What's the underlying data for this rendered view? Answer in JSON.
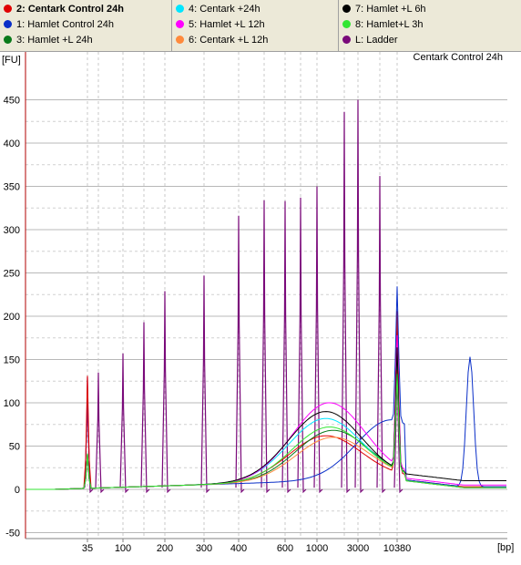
{
  "legend": {
    "columns": [
      [
        {
          "label": "2: Centark Control 24h",
          "color": "#e00000",
          "bold": true
        },
        {
          "label": "1: Hamlet Control 24h",
          "color": "#0a2fc8",
          "bold": false
        },
        {
          "label": "3: Hamlet +L 24h",
          "color": "#0a7a1a",
          "bold": false
        }
      ],
      [
        {
          "label": "4: Centark +24h",
          "color": "#00e6ff",
          "bold": false
        },
        {
          "label": "5: Hamlet +L 12h",
          "color": "#ff00ff",
          "bold": false
        },
        {
          "label": "6: Centark +L 12h",
          "color": "#ff8a3c",
          "bold": false
        }
      ],
      [
        {
          "label": "7: Hamlet +L 6h",
          "color": "#000000",
          "bold": false
        },
        {
          "label": "8: Hamlet+L 3h",
          "color": "#33e633",
          "bold": false
        },
        {
          "label": "L: Ladder",
          "color": "#7a0a7a",
          "bold": false
        }
      ]
    ]
  },
  "chart": {
    "sample_title": "Centark Control 24h",
    "y_unit": "[FU]",
    "x_unit": "[bp]",
    "y_ticks": [
      "-50",
      "0",
      "50",
      "100",
      "150",
      "200",
      "250",
      "300",
      "350",
      "400",
      "450"
    ],
    "x_ticks": [
      "35",
      "100",
      "200",
      "300",
      "400",
      "600",
      "1000",
      "3000",
      "10380"
    ]
  },
  "chart_data": {
    "type": "line",
    "title": "Centark Control 24h",
    "xlabel": "[bp]",
    "ylabel": "[FU]",
    "ylim": [
      -50,
      480
    ],
    "grid": true,
    "legend_position": "top",
    "x_tick_labels": [
      "35",
      "100",
      "200",
      "300",
      "400",
      "600",
      "1000",
      "3000",
      "10380"
    ],
    "ladder_peaks": [
      {
        "bp": "35",
        "fu": 130
      },
      {
        "bp": "50",
        "fu": 135
      },
      {
        "bp": "100",
        "fu": 157
      },
      {
        "bp": "150",
        "fu": 193
      },
      {
        "bp": "200",
        "fu": 229
      },
      {
        "bp": "300",
        "fu": 247
      },
      {
        "bp": "400",
        "fu": 316
      },
      {
        "bp": "500",
        "fu": 334
      },
      {
        "bp": "600",
        "fu": 333
      },
      {
        "bp": "700",
        "fu": 337
      },
      {
        "bp": "1000",
        "fu": 350
      },
      {
        "bp": "2000",
        "fu": 436
      },
      {
        "bp": "3000",
        "fu": 450
      },
      {
        "bp": "7000",
        "fu": 362
      },
      {
        "bp": "10380",
        "fu": 181
      }
    ],
    "series": [
      {
        "name": "2: Centark Control 24h",
        "color": "#e00000",
        "peak_fu": 52,
        "upper_marker_fu": 186,
        "baseline_end_fu": 3
      },
      {
        "name": "1: Hamlet Control 24h",
        "color": "#0a2fc8",
        "peak_fu": 68,
        "upper_marker_fu": 155,
        "baseline_end_fu": 3
      },
      {
        "name": "3: Hamlet +L 24h",
        "color": "#0a7a1a",
        "peak_fu": 58,
        "upper_marker_fu": 130,
        "baseline_end_fu": 2
      },
      {
        "name": "4: Centark +24h",
        "color": "#00e6ff",
        "peak_fu": 72,
        "upper_marker_fu": 120,
        "baseline_end_fu": 2
      },
      {
        "name": "5: Hamlet +L 12h",
        "color": "#ff00ff",
        "peak_fu": 90,
        "upper_marker_fu": 150,
        "baseline_end_fu": 5
      },
      {
        "name": "6: Centark +L 12h",
        "color": "#ff8a3c",
        "peak_fu": 50,
        "upper_marker_fu": 115,
        "baseline_end_fu": 2
      },
      {
        "name": "7: Hamlet +L 6h",
        "color": "#000000",
        "peak_fu": 80,
        "upper_marker_fu": 140,
        "baseline_end_fu": 10
      },
      {
        "name": "8: Hamlet+L 3h",
        "color": "#33e633",
        "peak_fu": 62,
        "upper_marker_fu": 110,
        "baseline_end_fu": 2
      }
    ]
  }
}
